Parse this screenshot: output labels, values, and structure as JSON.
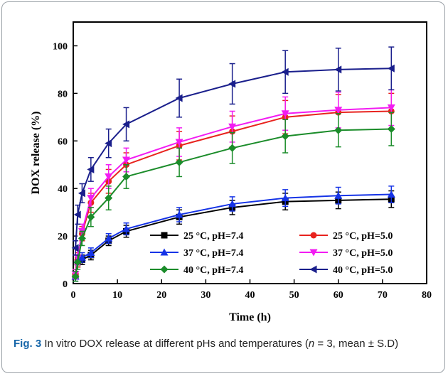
{
  "chart_data": {
    "type": "line",
    "xlabel": "Time (h)",
    "ylabel": "DOX release (%)",
    "xlim": [
      0,
      80
    ],
    "ylim": [
      0,
      110
    ],
    "xticks": [
      0,
      10,
      20,
      30,
      40,
      50,
      60,
      70,
      80
    ],
    "yticks": [
      0,
      20,
      40,
      60,
      80,
      100
    ],
    "legend_position": "lower-right",
    "grid": false,
    "x": [
      0.5,
      1,
      2,
      4,
      8,
      12,
      24,
      36,
      48,
      60,
      72
    ],
    "series": [
      {
        "name": "25 °C, pH=7.4",
        "color": "#000000",
        "marker": "square",
        "values": [
          3,
          9,
          10,
          12,
          18,
          22,
          28,
          32,
          34.5,
          35,
          35.5
        ],
        "errors": [
          2,
          2,
          2,
          2,
          2,
          2.5,
          3,
          3,
          3.5,
          3.5,
          3.5
        ]
      },
      {
        "name": "25 °C, pH=5.0",
        "color": "#e8231e",
        "marker": "circle",
        "values": [
          4,
          10,
          21,
          34,
          43,
          50,
          58,
          64,
          70,
          72,
          72.5
        ],
        "errors": [
          2,
          3,
          3,
          4,
          5,
          5,
          6,
          6.5,
          7,
          7.5,
          7.5
        ]
      },
      {
        "name": "37 °C, pH=7.4",
        "color": "#1533e6",
        "marker": "triangle-up",
        "values": [
          3,
          10,
          11,
          13,
          19,
          23,
          29,
          33.5,
          36,
          37,
          37.5
        ],
        "errors": [
          2,
          2,
          2,
          2,
          2,
          2.5,
          3,
          3,
          3.5,
          3.5,
          3.5
        ]
      },
      {
        "name": "37 °C, pH=5.0",
        "color": "#f21cf2",
        "marker": "triangle-down",
        "values": [
          4,
          11,
          22,
          36,
          45,
          52,
          59.5,
          66,
          71.5,
          73,
          74
        ],
        "errors": [
          2,
          3,
          3,
          4,
          5,
          5,
          6,
          6.5,
          7,
          7.5,
          7.5
        ]
      },
      {
        "name": "40 °C, pH=7.4",
        "color": "#1b8c2a",
        "marker": "diamond",
        "values": [
          3,
          9,
          19,
          28,
          36,
          45,
          51,
          57,
          62,
          64.5,
          65
        ],
        "errors": [
          2,
          3,
          3,
          4,
          5,
          5,
          6,
          6.5,
          7,
          7,
          7
        ]
      },
      {
        "name": "40 °C, pH=5.0",
        "color": "#1a1f8c",
        "marker": "triangle-left",
        "values": [
          15,
          29,
          38,
          48,
          59,
          67,
          78,
          84,
          89,
          90,
          90.5
        ],
        "errors": [
          3,
          4,
          4,
          5,
          6,
          7,
          8,
          8.5,
          9,
          9,
          9
        ]
      }
    ]
  },
  "caption": {
    "label": "Fig. 3",
    "text_before": " In vitro DOX release at different pHs and temperatures (",
    "n_symbol": "n",
    "text_after": " = 3, mean ± S.D)"
  }
}
